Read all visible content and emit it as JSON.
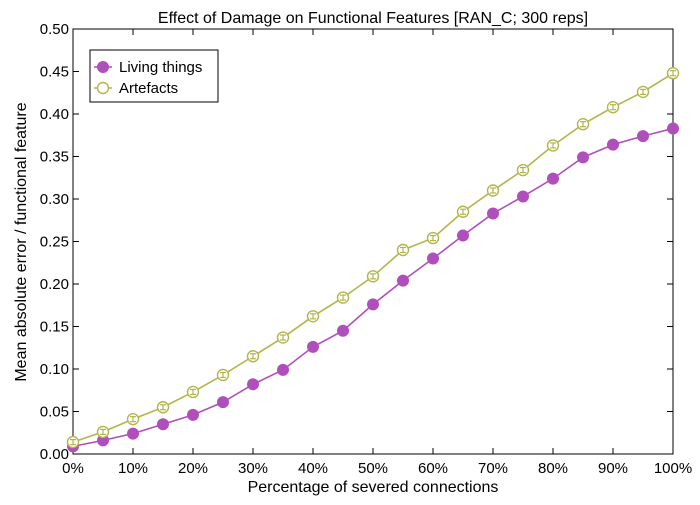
{
  "chart_data": {
    "type": "line",
    "title": "Effect of Damage on Functional Features [RAN_C; 300 reps]",
    "xlabel": "Percentage of severed connections",
    "ylabel": "Mean absolute error / functional feature",
    "x": [
      0,
      5,
      10,
      15,
      20,
      25,
      30,
      35,
      40,
      45,
      50,
      55,
      60,
      65,
      70,
      75,
      80,
      85,
      90,
      95,
      100
    ],
    "xlim": [
      0,
      100
    ],
    "ylim": [
      0,
      0.5
    ],
    "xticks": [
      0,
      10,
      20,
      30,
      40,
      50,
      60,
      70,
      80,
      90,
      100
    ],
    "xtick_labels": [
      "0%",
      "10%",
      "20%",
      "30%",
      "40%",
      "50%",
      "60%",
      "70%",
      "80%",
      "90%",
      "100%"
    ],
    "yticks": [
      0,
      0.05,
      0.1,
      0.15,
      0.2,
      0.25,
      0.3,
      0.35,
      0.4,
      0.45,
      0.5
    ],
    "ytick_labels": [
      "0.00",
      "0.05",
      "0.10",
      "0.15",
      "0.20",
      "0.25",
      "0.30",
      "0.35",
      "0.40",
      "0.45",
      "0.50"
    ],
    "grid": false,
    "legend_position": "top-left",
    "error_bars": true,
    "series": [
      {
        "name": "Living things",
        "color": "#b04fbb",
        "marker": "filled-circle",
        "values": [
          0.009,
          0.016,
          0.024,
          0.035,
          0.046,
          0.061,
          0.082,
          0.099,
          0.126,
          0.145,
          0.176,
          0.204,
          0.23,
          0.257,
          0.283,
          0.303,
          0.324,
          0.349,
          0.364,
          0.374,
          0.383
        ]
      },
      {
        "name": "Artefacts",
        "color": "#b3b54a",
        "marker": "open-circle",
        "values": [
          0.014,
          0.026,
          0.041,
          0.055,
          0.073,
          0.093,
          0.115,
          0.137,
          0.162,
          0.184,
          0.209,
          0.24,
          0.254,
          0.285,
          0.31,
          0.334,
          0.363,
          0.388,
          0.408,
          0.426,
          0.448
        ]
      }
    ]
  }
}
